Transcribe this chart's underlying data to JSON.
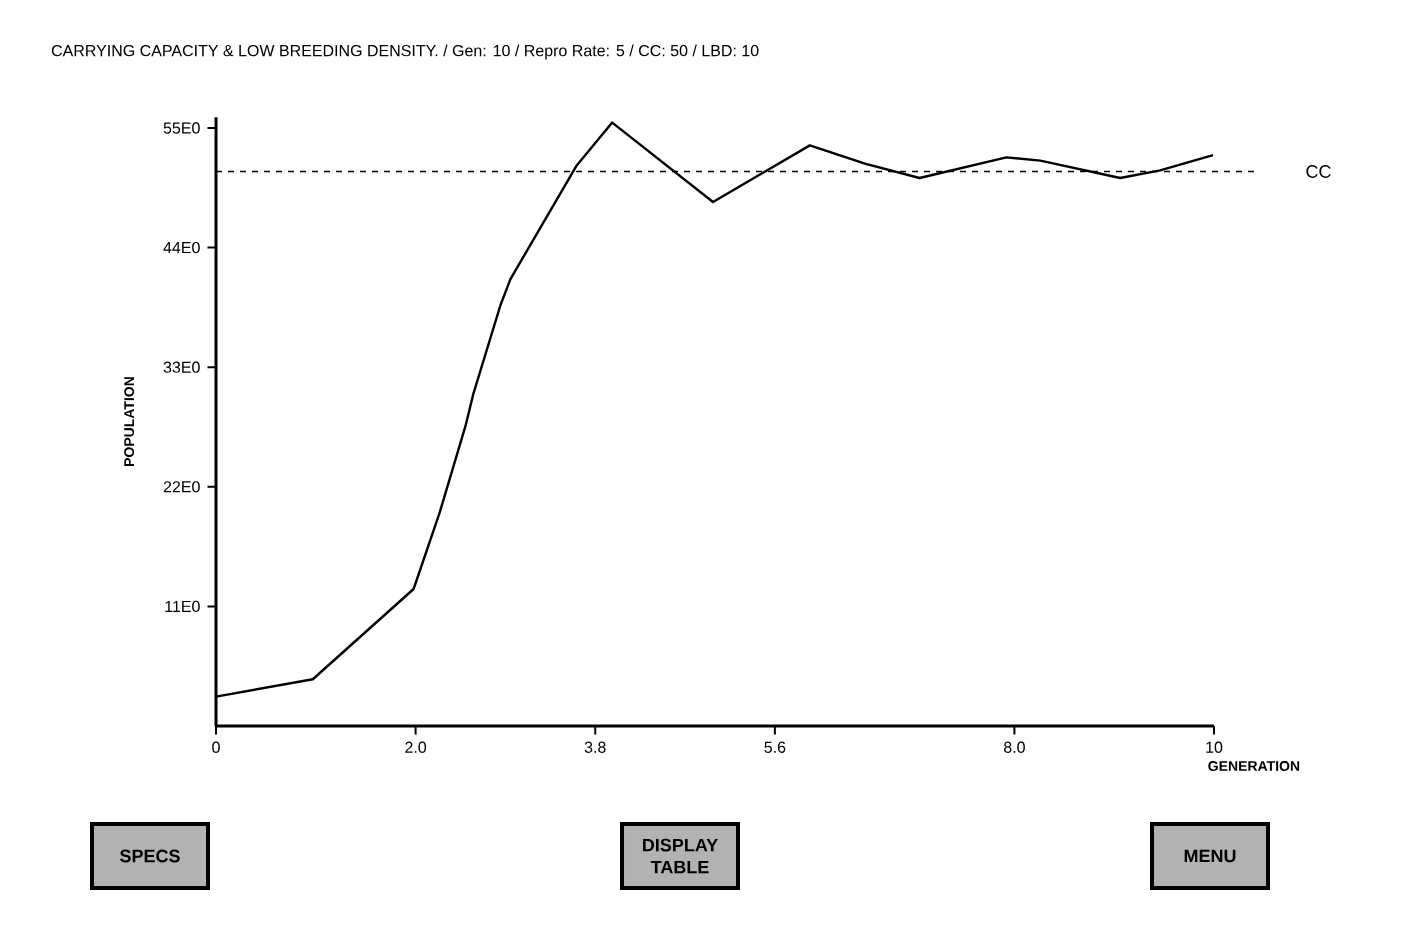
{
  "chart_data": {
    "type": "line",
    "title": "CARRYING CAPACITY & LOW BREEDING DENSITY.  / Gen: 10  / Repro Rate: 5 / CC: 50 / LBD: 10",
    "xlabel": "GENERATION",
    "ylabel": "POPULATION",
    "x": [
      0,
      0.97,
      1.98,
      2.24,
      2.5,
      2.58,
      2.85,
      2.95,
      3.61,
      3.97,
      4.98,
      5.95,
      6.51,
      7.05,
      7.92,
      8.26,
      9.06,
      9.46,
      9.99
    ],
    "series": [
      {
        "color": "#000000",
        "values": [
          2.7,
          4.3,
          12.6,
          19.6,
          27.6,
          30.6,
          38.7,
          41.1,
          51.5,
          55.5,
          48.2,
          53.4,
          51.7,
          50.4,
          52.3,
          52,
          50.4,
          51.1,
          52.5
        ]
      }
    ],
    "xlim": [
      0,
      10
    ],
    "ylim": [
      0,
      56
    ],
    "xticks": [
      0,
      {
        "value": 2,
        "label": "2.0"
      },
      3.8,
      5.6,
      {
        "value": 8,
        "label": "8.0"
      },
      10
    ],
    "yticks": [
      {
        "value": 11,
        "label": "11E0"
      },
      {
        "value": 22,
        "label": "22E0"
      },
      {
        "value": 33,
        "label": "33E0"
      },
      {
        "value": 44,
        "label": "44E0"
      },
      {
        "value": 55,
        "label": "55E0"
      }
    ],
    "ref_lines": [
      {
        "axis": "y",
        "value": 51,
        "label": "CC",
        "line_style": "dashed"
      }
    ],
    "grid": false,
    "marker": "none",
    "line_style": "solid",
    "annotations": [
      "SPECS",
      "DISPLAY TABLE",
      "MENU"
    ]
  }
}
